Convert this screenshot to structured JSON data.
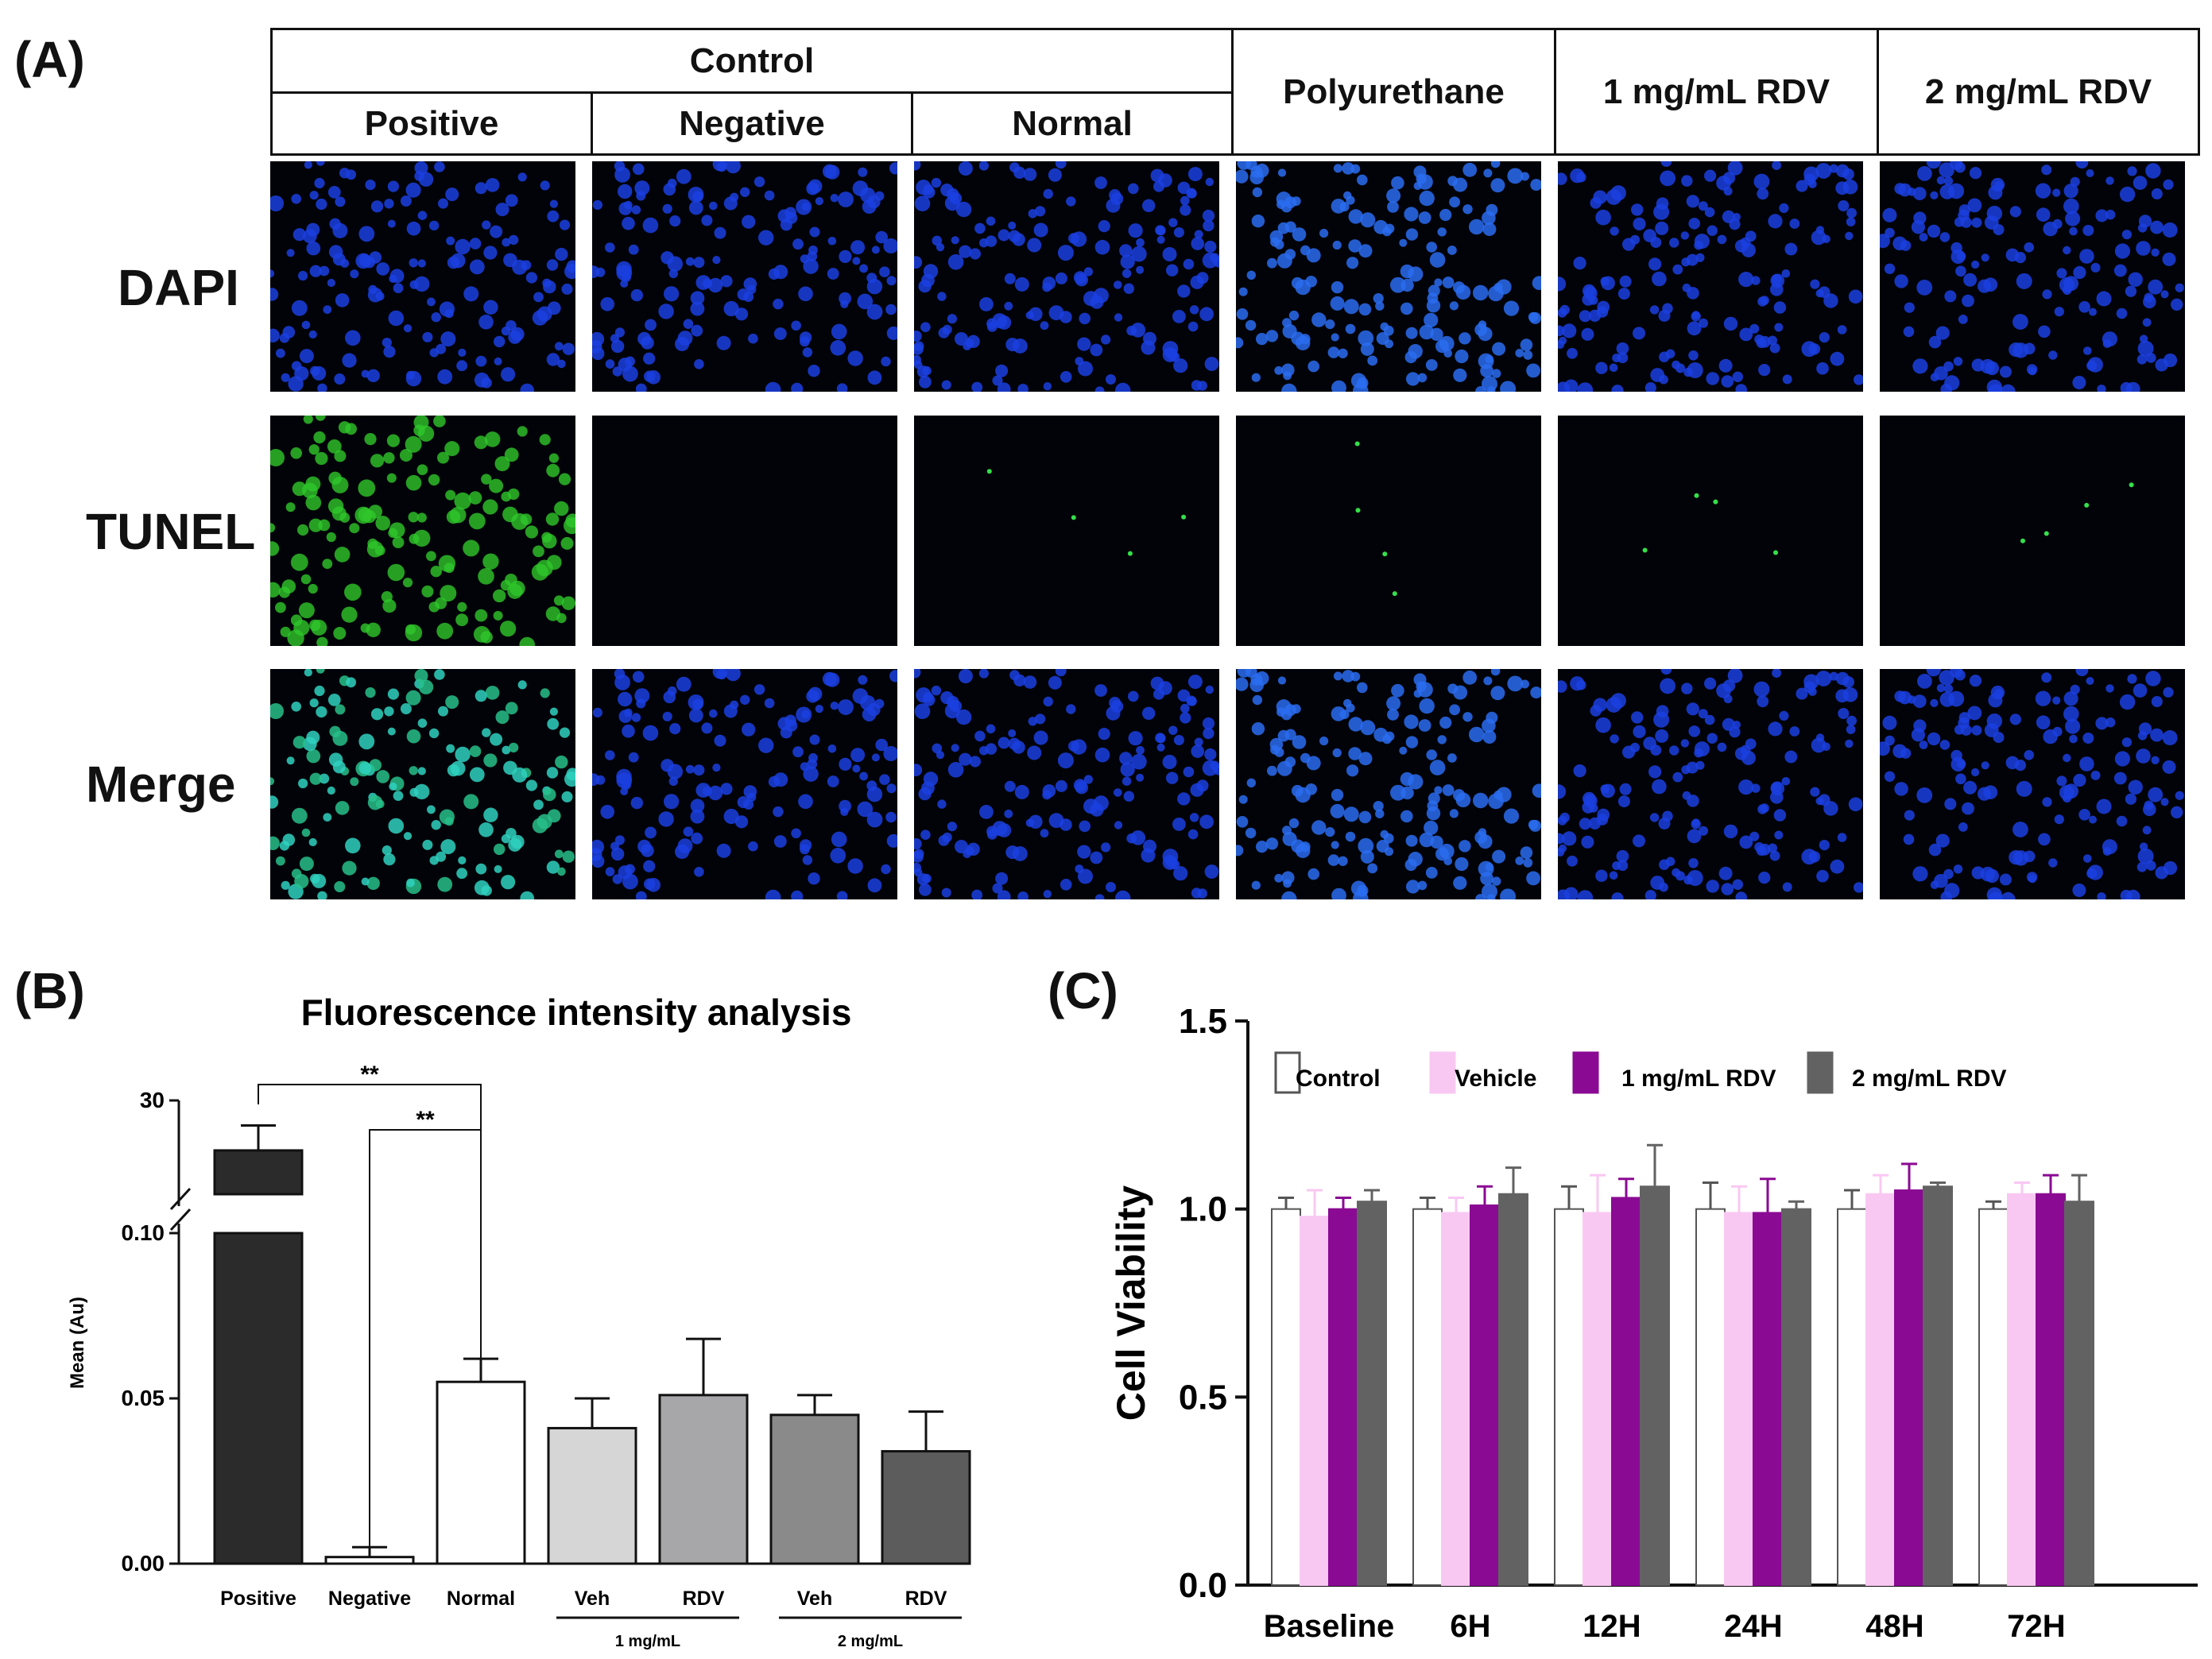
{
  "panelA": {
    "letter": "(A)",
    "header_control": "Control",
    "subheaders": [
      "Positive",
      "Negative",
      "Normal"
    ],
    "other_headers": [
      "Polyurethane",
      "1 mg/mL  RDV",
      "2 mg/mL   RDV"
    ],
    "row_labels": [
      "DAPI",
      "TUNEL",
      "Merge"
    ]
  },
  "panelB": {
    "letter": "(B)",
    "chart_data": {
      "type": "bar",
      "title": "Fluorescence intensity analysis",
      "ylabel": "Mean (Au)",
      "xlabel": "",
      "categories": [
        "Positive",
        "Negative",
        "Normal",
        "Veh",
        "RDV",
        "Veh",
        "RDV"
      ],
      "group_labels": [
        "1 mg/mL",
        "2 mg/mL"
      ],
      "values": [
        22.0,
        0.002,
        0.055,
        0.041,
        0.051,
        0.045,
        0.034
      ],
      "errors": [
        4.0,
        0.003,
        0.007,
        0.009,
        0.017,
        0.006,
        0.012
      ],
      "bar_colors": [
        "#2b2b2b",
        "#ffffff",
        "#ffffff",
        "#d6d6d6",
        "#a7a7a9",
        "#8a8a8a",
        "#5c5c5c"
      ],
      "y_ticks": [
        "0.00",
        "0.05",
        "0.10",
        "30"
      ],
      "broken_axis": {
        "lower_range": [
          0,
          0.1
        ],
        "upper_range": [
          0.1,
          30
        ]
      },
      "significance": [
        {
          "from": "Positive",
          "to": "Normal",
          "label": "**"
        },
        {
          "from": "Negative",
          "to": "Normal",
          "label": "**"
        }
      ]
    }
  },
  "panelC": {
    "letter": "(C)",
    "chart_data": {
      "type": "bar",
      "title": "",
      "ylabel": "Cell Viability",
      "xlabel": "",
      "categories": [
        "Baseline",
        "6H",
        "12H",
        "24H",
        "48H",
        "72H"
      ],
      "ylim": [
        0,
        1.5
      ],
      "y_ticks": [
        "0.0",
        "0.5",
        "1.0",
        "1.5"
      ],
      "legend_position": "top",
      "series": [
        {
          "name": "Control",
          "color": "#ffffff",
          "values": [
            1.0,
            1.0,
            1.0,
            1.0,
            1.0,
            1.0
          ],
          "errors": [
            0.03,
            0.03,
            0.06,
            0.07,
            0.05,
            0.02
          ]
        },
        {
          "name": "Vehicle",
          "color": "#f9c8f2",
          "values": [
            0.98,
            0.99,
            0.99,
            0.99,
            1.04,
            1.04
          ],
          "errors": [
            0.07,
            0.04,
            0.1,
            0.07,
            0.05,
            0.03
          ]
        },
        {
          "name": "1 mg/mL RDV",
          "color": "#8a0a93",
          "values": [
            1.0,
            1.01,
            1.03,
            0.99,
            1.05,
            1.04
          ],
          "errors": [
            0.03,
            0.05,
            0.05,
            0.09,
            0.07,
            0.05
          ]
        },
        {
          "name": "2 mg/mL RDV",
          "color": "#626262",
          "values": [
            1.02,
            1.04,
            1.06,
            1.0,
            1.06,
            1.02
          ],
          "errors": [
            0.03,
            0.07,
            0.11,
            0.02,
            0.01,
            0.07
          ]
        }
      ]
    }
  }
}
